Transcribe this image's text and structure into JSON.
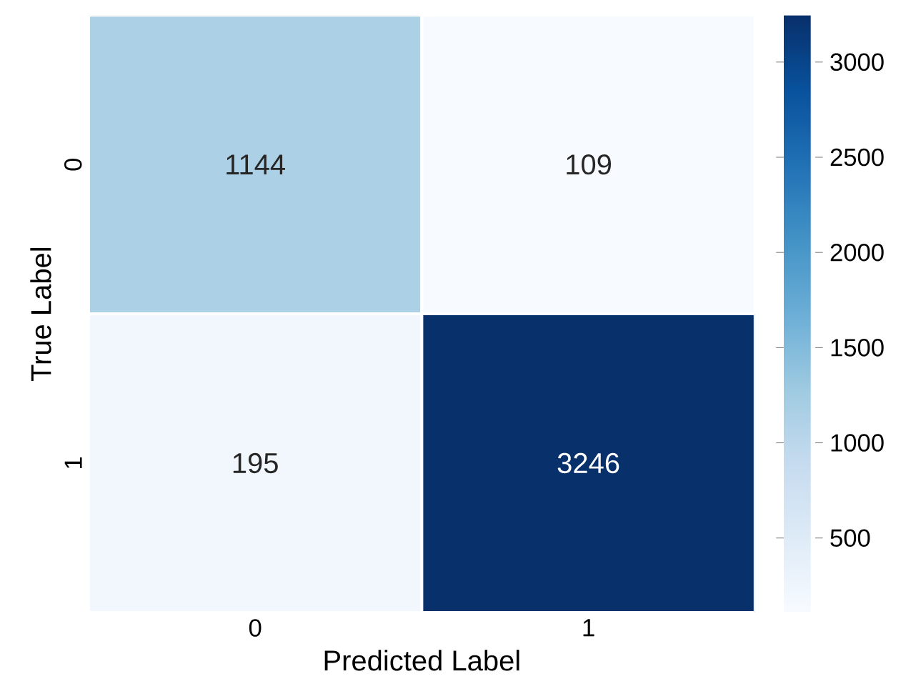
{
  "chart_data": {
    "type": "heatmap",
    "xlabel": "Predicted Label",
    "ylabel": "True Label",
    "categories": [
      "0",
      "1"
    ],
    "y_categories": [
      "0",
      "1"
    ],
    "cells": [
      [
        1144,
        109
      ],
      [
        195,
        3246
      ]
    ],
    "clim": [
      109,
      3246
    ],
    "cticks": [
      500,
      1000,
      1500,
      2000,
      2500,
      3000
    ],
    "data_labels": true
  }
}
